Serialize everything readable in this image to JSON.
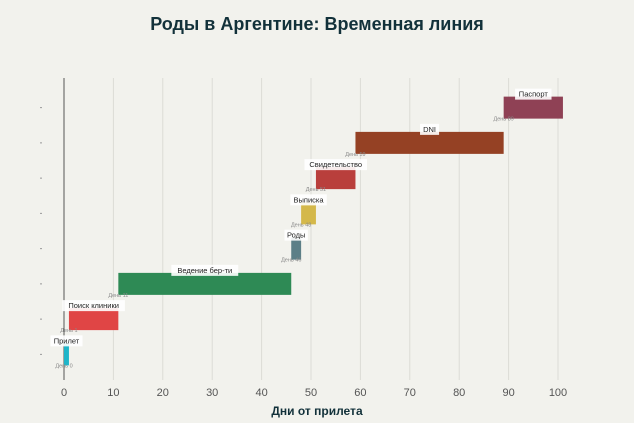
{
  "chart_data": {
    "type": "gantt",
    "title": "Роды в Аргентине: Временная линия",
    "xlabel": "Дни от прилета",
    "ylabel": "",
    "xlim": [
      0,
      102
    ],
    "xticks": [
      0,
      10,
      20,
      30,
      40,
      50,
      60,
      70,
      80,
      90,
      100
    ],
    "grid": true,
    "tasks": [
      {
        "name": "Прилет",
        "start": 0,
        "end": 1,
        "start_label": "День 0",
        "color": "#1eb5c9"
      },
      {
        "name": "Поиск клиники",
        "start": 1,
        "end": 11,
        "start_label": "День 1",
        "color": "#e04545"
      },
      {
        "name": "Ведение бер-ти",
        "start": 11,
        "end": 46,
        "start_label": "День 11",
        "color": "#2e8a55"
      },
      {
        "name": "Роды",
        "start": 46,
        "end": 48,
        "start_label": "День 46",
        "color": "#5c7f87"
      },
      {
        "name": "Выписка",
        "start": 48,
        "end": 51,
        "start_label": "День 48",
        "color": "#d4b84a"
      },
      {
        "name": "Свидетельство",
        "start": 51,
        "end": 59,
        "start_label": "День 51",
        "color": "#b93f3c"
      },
      {
        "name": "DNI",
        "start": 59,
        "end": 89,
        "start_label": "День 59",
        "color": "#954124"
      },
      {
        "name": "Паспорт",
        "start": 89,
        "end": 101,
        "start_label": "День 89",
        "color": "#8f4155"
      }
    ]
  }
}
